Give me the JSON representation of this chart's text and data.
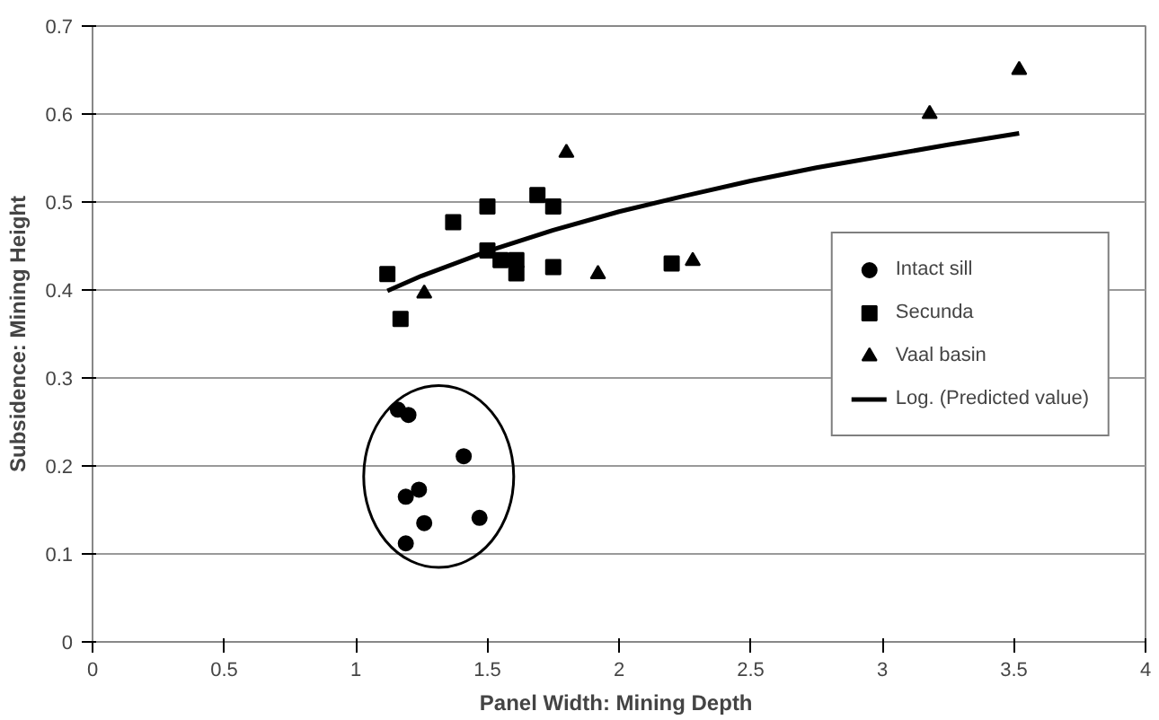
{
  "chart_data": {
    "type": "scatter",
    "xlabel": "Panel Width:  Mining Depth",
    "ylabel": "Subsidence: Mining Height",
    "xlim": [
      0,
      4
    ],
    "ylim": [
      0,
      0.7
    ],
    "xticks": [
      0,
      0.5,
      1,
      1.5,
      2,
      2.5,
      3,
      3.5,
      4
    ],
    "yticks": [
      0,
      0.1,
      0.2,
      0.3,
      0.4,
      0.5,
      0.6,
      0.7
    ],
    "grid": "y",
    "legend": "right",
    "series": [
      {
        "name": "Intact sill",
        "color": "#000000",
        "marker": "circle",
        "x": [
          1.16,
          1.2,
          1.41,
          1.24,
          1.19,
          1.26,
          1.47,
          1.19
        ],
        "values": [
          0.264,
          0.258,
          0.211,
          0.173,
          0.165,
          0.135,
          0.141,
          0.112
        ]
      },
      {
        "name": "Secunda",
        "color": "#000000",
        "marker": "square",
        "x": [
          1.12,
          1.17,
          1.37,
          1.5,
          1.5,
          1.55,
          1.61,
          1.61,
          1.69,
          1.75,
          1.75,
          2.2
        ],
        "values": [
          0.418,
          0.367,
          0.477,
          0.495,
          0.445,
          0.434,
          0.434,
          0.419,
          0.508,
          0.495,
          0.426,
          0.43
        ]
      },
      {
        "name": "Vaal basin",
        "color": "#000000",
        "marker": "triangle",
        "x": [
          1.26,
          1.8,
          1.92,
          2.28,
          3.18,
          3.52
        ],
        "values": [
          0.396,
          0.556,
          0.418,
          0.433,
          0.6,
          0.65
        ]
      },
      {
        "name": "Log. (Predicted value)",
        "type": "line",
        "color": "#000000",
        "line_style": "solid",
        "x": [
          1.12,
          1.25,
          1.5,
          1.75,
          2,
          2.25,
          2.5,
          2.75,
          3,
          3.25,
          3.52
        ],
        "values": [
          0.399,
          0.416,
          0.444,
          0.468,
          0.489,
          0.507,
          0.524,
          0.539,
          0.552,
          0.565,
          0.578
        ]
      }
    ]
  }
}
